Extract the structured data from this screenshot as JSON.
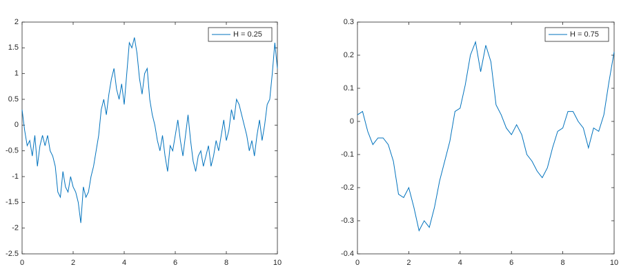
{
  "chart_data": [
    {
      "type": "line",
      "legend": "northeast",
      "xlim": [
        0,
        10
      ],
      "ylim": [
        -2.5,
        2
      ],
      "xticks": [
        0,
        2,
        4,
        6,
        8,
        10
      ],
      "yticks": [
        -2.5,
        -2,
        -1.5,
        -1,
        -0.5,
        0,
        0.5,
        1,
        1.5,
        2
      ],
      "x": [
        0,
        0.1,
        0.2,
        0.3,
        0.4,
        0.5,
        0.6,
        0.7,
        0.8,
        0.9,
        1,
        1.1,
        1.2,
        1.3,
        1.4,
        1.5,
        1.6,
        1.7,
        1.8,
        1.9,
        2,
        2.1,
        2.2,
        2.3,
        2.4,
        2.5,
        2.6,
        2.7,
        2.8,
        2.9,
        3,
        3.1,
        3.2,
        3.3,
        3.4,
        3.5,
        3.6,
        3.7,
        3.8,
        3.9,
        4,
        4.1,
        4.2,
        4.3,
        4.4,
        4.5,
        4.6,
        4.7,
        4.8,
        4.9,
        5,
        5.1,
        5.2,
        5.3,
        5.4,
        5.5,
        5.6,
        5.7,
        5.8,
        5.9,
        6,
        6.1,
        6.2,
        6.3,
        6.4,
        6.5,
        6.6,
        6.7,
        6.8,
        6.9,
        7,
        7.1,
        7.2,
        7.3,
        7.4,
        7.5,
        7.6,
        7.7,
        7.8,
        7.9,
        8,
        8.1,
        8.2,
        8.3,
        8.4,
        8.5,
        8.6,
        8.7,
        8.8,
        8.9,
        9,
        9.1,
        9.2,
        9.3,
        9.4,
        9.5,
        9.6,
        9.7,
        9.8,
        9.9,
        10
      ],
      "series": [
        {
          "name": "H = 0.25",
          "color": "#0072bd",
          "values": [
            0.3,
            -0.1,
            -0.4,
            -0.3,
            -0.6,
            -0.2,
            -0.8,
            -0.4,
            -0.2,
            -0.4,
            -0.2,
            -0.5,
            -0.6,
            -0.8,
            -1.3,
            -1.4,
            -0.9,
            -1.2,
            -1.3,
            -1,
            -1.2,
            -1.3,
            -1.5,
            -1.9,
            -1.2,
            -1.4,
            -1.3,
            -1,
            -0.8,
            -0.5,
            -0.2,
            0.3,
            0.5,
            0.2,
            0.6,
            0.9,
            1.1,
            0.7,
            0.5,
            0.8,
            0.4,
            1,
            1.6,
            1.5,
            1.7,
            1.4,
            0.9,
            0.6,
            1,
            1.1,
            0.5,
            0.2,
            0,
            -0.3,
            -0.5,
            -0.2,
            -0.6,
            -0.9,
            -0.4,
            -0.5,
            -0.2,
            0.1,
            -0.3,
            -0.6,
            -0.2,
            0.2,
            -0.3,
            -0.7,
            -0.9,
            -0.6,
            -0.5,
            -0.8,
            -0.6,
            -0.4,
            -0.8,
            -0.6,
            -0.3,
            -0.5,
            -0.2,
            0.1,
            -0.3,
            -0.1,
            0.3,
            0.1,
            0.5,
            0.4,
            0.2,
            0,
            -0.2,
            -0.5,
            -0.3,
            -0.6,
            -0.2,
            0.1,
            -0.3,
            0,
            0.4,
            0.5,
            1,
            1.6,
            1.1
          ]
        }
      ]
    },
    {
      "type": "line",
      "legend": "northeast",
      "xlim": [
        0,
        10
      ],
      "ylim": [
        -0.4,
        0.3
      ],
      "xticks": [
        0,
        2,
        4,
        6,
        8,
        10
      ],
      "yticks": [
        -0.4,
        -0.3,
        -0.2,
        -0.1,
        0,
        0.1,
        0.2,
        0.3
      ],
      "x": [
        0,
        0.2,
        0.4,
        0.6,
        0.8,
        1,
        1.2,
        1.4,
        1.6,
        1.8,
        2,
        2.2,
        2.4,
        2.6,
        2.8,
        3,
        3.2,
        3.4,
        3.6,
        3.8,
        4,
        4.2,
        4.4,
        4.6,
        4.8,
        5,
        5.2,
        5.4,
        5.6,
        5.8,
        6,
        6.2,
        6.4,
        6.6,
        6.8,
        7,
        7.2,
        7.4,
        7.6,
        7.8,
        8,
        8.2,
        8.4,
        8.6,
        8.8,
        9,
        9.2,
        9.4,
        9.6,
        9.8,
        10
      ],
      "series": [
        {
          "name": "H = 0.75",
          "color": "#0072bd",
          "values": [
            0.02,
            0.03,
            -0.03,
            -0.07,
            -0.05,
            -0.05,
            -0.07,
            -0.12,
            -0.22,
            -0.23,
            -0.2,
            -0.26,
            -0.33,
            -0.3,
            -0.32,
            -0.26,
            -0.18,
            -0.12,
            -0.06,
            0.03,
            0.04,
            0.11,
            0.2,
            0.24,
            0.15,
            0.23,
            0.18,
            0.05,
            0.02,
            -0.02,
            -0.04,
            -0.01,
            -0.04,
            -0.1,
            -0.12,
            -0.15,
            -0.17,
            -0.14,
            -0.08,
            -0.03,
            -0.02,
            0.03,
            0.03,
            0,
            -0.02,
            -0.08,
            -0.02,
            -0.03,
            0.02,
            0.12,
            0.21
          ]
        }
      ]
    }
  ]
}
